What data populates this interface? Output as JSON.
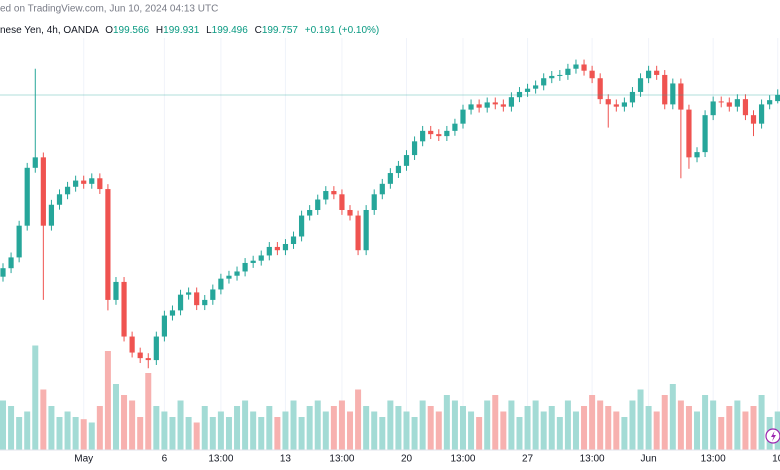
{
  "chart_data": {
    "type": "candlestick",
    "title": "ed on TradingView.com, Jun 10, 2024 04:13 UTC",
    "symbol": "nese Yen, 4h, OANDA",
    "legend_labels": [
      "O",
      "H",
      "L",
      "C"
    ],
    "legend_values": [
      199.566,
      199.931,
      199.496,
      199.757
    ],
    "change": "+0.191 (+0.10%)",
    "categories": [
      null,
      null,
      null,
      null,
      null,
      null,
      null,
      null,
      null,
      null,
      "May",
      null,
      null,
      null,
      null,
      null,
      null,
      null,
      null,
      null,
      "6",
      null,
      null,
      null,
      null,
      null,
      null,
      "13:00",
      null,
      null,
      null,
      null,
      null,
      null,
      null,
      "13",
      null,
      null,
      null,
      null,
      null,
      null,
      "13:00",
      null,
      null,
      null,
      null,
      null,
      null,
      null,
      "20",
      null,
      null,
      null,
      null,
      null,
      null,
      "13:00",
      null,
      null,
      null,
      null,
      null,
      null,
      null,
      "27",
      null,
      null,
      null,
      null,
      null,
      null,
      null,
      "13:00",
      null,
      null,
      null,
      null,
      null,
      null,
      "Jun",
      null,
      null,
      null,
      null,
      null,
      null,
      null,
      "13:00",
      null,
      null,
      null,
      null,
      null,
      null,
      null,
      "10"
    ],
    "open": [
      194.2,
      194.46,
      194.79,
      195.76,
      197.53,
      197.85,
      195.76,
      196.4,
      196.72,
      196.95,
      197.14,
      197.04,
      197.21,
      196.88,
      193.49,
      194.04,
      192.37,
      191.88,
      191.71,
      191.65,
      192.37,
      193.01,
      193.17,
      193.65,
      193.72,
      193.33,
      193.49,
      193.81,
      194.14,
      194.23,
      194.36,
      194.62,
      194.69,
      194.85,
      195.11,
      195.01,
      195.2,
      195.43,
      196.07,
      196.24,
      196.56,
      196.82,
      196.72,
      196.24,
      196.07,
      195.01,
      196.24,
      196.72,
      197.04,
      197.37,
      197.59,
      197.92,
      198.34,
      198.66,
      198.56,
      198.5,
      198.66,
      198.88,
      199.31,
      199.47,
      199.37,
      199.53,
      199.47,
      199.4,
      199.69,
      199.85,
      199.95,
      200.05,
      200.27,
      200.34,
      200.37,
      200.56,
      200.69,
      200.5,
      200.27,
      199.63,
      199.47,
      199.4,
      199.53,
      199.85,
      200.27,
      200.5,
      200.37,
      199.47,
      200.11,
      199.31,
      197.85,
      198.01,
      199.14,
      199.56,
      199.53,
      199.4,
      199.63,
      199.14,
      198.88,
      199.47,
      199.57
    ],
    "high": [
      194.61,
      194.94,
      195.91,
      197.68,
      200.56,
      198.0,
      196.55,
      196.87,
      197.1,
      197.29,
      197.29,
      197.36,
      197.36,
      197.03,
      194.19,
      194.19,
      192.52,
      192.03,
      191.86,
      192.52,
      193.16,
      193.32,
      193.8,
      193.87,
      193.87,
      193.64,
      193.96,
      194.29,
      194.38,
      194.51,
      194.77,
      194.84,
      195.0,
      195.26,
      195.26,
      195.35,
      195.58,
      196.22,
      196.39,
      196.71,
      196.97,
      196.97,
      196.87,
      196.39,
      196.22,
      196.39,
      196.87,
      197.19,
      197.52,
      197.74,
      198.07,
      198.49,
      198.81,
      198.81,
      198.71,
      198.81,
      199.03,
      199.46,
      199.62,
      199.62,
      199.68,
      199.68,
      199.62,
      199.84,
      200.0,
      200.1,
      200.2,
      200.42,
      200.49,
      200.52,
      200.71,
      200.84,
      200.84,
      200.65,
      200.42,
      199.78,
      199.62,
      199.68,
      200.0,
      200.42,
      200.65,
      200.65,
      200.52,
      200.26,
      200.26,
      199.46,
      198.16,
      199.29,
      199.71,
      199.71,
      199.68,
      199.78,
      199.78,
      199.29,
      199.62,
      199.75,
      199.93
    ],
    "low": [
      194.05,
      194.31,
      194.64,
      195.61,
      197.38,
      193.49,
      195.61,
      196.25,
      196.57,
      196.8,
      196.89,
      196.89,
      196.73,
      193.17,
      193.34,
      192.22,
      191.73,
      191.56,
      191.4,
      191.5,
      192.22,
      192.86,
      193.02,
      193.5,
      193.18,
      193.18,
      193.34,
      193.66,
      193.99,
      194.08,
      194.21,
      194.47,
      194.54,
      194.7,
      194.86,
      194.86,
      195.05,
      195.28,
      195.92,
      196.09,
      196.41,
      196.57,
      196.09,
      195.92,
      194.86,
      194.86,
      196.09,
      196.57,
      196.89,
      197.22,
      197.44,
      197.77,
      198.19,
      198.41,
      198.35,
      198.35,
      198.51,
      198.73,
      199.16,
      199.22,
      199.22,
      199.32,
      199.25,
      199.25,
      199.54,
      199.7,
      199.8,
      199.9,
      200.12,
      200.19,
      200.22,
      200.41,
      200.35,
      200.12,
      199.48,
      198.76,
      199.25,
      199.25,
      199.38,
      199.7,
      200.12,
      200.22,
      199.32,
      199.32,
      197.21,
      197.5,
      197.7,
      197.86,
      198.99,
      199.38,
      199.25,
      199.25,
      198.99,
      198.5,
      198.73,
      199.32,
      199.5
    ],
    "close": [
      194.46,
      194.79,
      195.76,
      197.53,
      197.85,
      195.76,
      196.4,
      196.72,
      196.95,
      197.14,
      197.04,
      197.21,
      196.88,
      193.49,
      194.04,
      192.37,
      191.88,
      191.71,
      191.65,
      192.37,
      193.01,
      193.17,
      193.65,
      193.72,
      193.33,
      193.49,
      193.81,
      194.14,
      194.23,
      194.36,
      194.62,
      194.69,
      194.85,
      195.11,
      195.01,
      195.2,
      195.43,
      196.07,
      196.24,
      196.56,
      196.82,
      196.72,
      196.24,
      196.07,
      195.01,
      196.24,
      196.72,
      197.04,
      197.37,
      197.59,
      197.92,
      198.34,
      198.66,
      198.56,
      198.5,
      198.66,
      198.88,
      199.31,
      199.47,
      199.37,
      199.53,
      199.47,
      199.4,
      199.69,
      199.85,
      199.95,
      200.05,
      200.27,
      200.34,
      200.37,
      200.56,
      200.69,
      200.5,
      200.27,
      199.63,
      199.47,
      199.4,
      199.53,
      199.85,
      200.27,
      200.5,
      200.37,
      199.47,
      200.11,
      199.31,
      197.85,
      198.01,
      199.14,
      199.56,
      199.53,
      199.4,
      199.63,
      199.14,
      198.88,
      199.47,
      199.6,
      199.76
    ],
    "volume": [
      45,
      40,
      30,
      35,
      95,
      55,
      40,
      30,
      35,
      30,
      28,
      25,
      40,
      90,
      60,
      50,
      45,
      30,
      70,
      40,
      35,
      30,
      45,
      30,
      25,
      40,
      30,
      35,
      30,
      40,
      45,
      35,
      30,
      40,
      30,
      35,
      45,
      30,
      40,
      45,
      35,
      40,
      45,
      35,
      55,
      40,
      35,
      30,
      45,
      40,
      35,
      30,
      45,
      40,
      35,
      50,
      45,
      40,
      35,
      30,
      45,
      50,
      35,
      45,
      30,
      40,
      45,
      35,
      40,
      30,
      45,
      35,
      40,
      50,
      45,
      40,
      35,
      30,
      45,
      55,
      40,
      35,
      50,
      60,
      45,
      40,
      35,
      50,
      45,
      30,
      40,
      45,
      35,
      40,
      50,
      30,
      35
    ],
    "ylim": [
      188.9,
      201.5
    ],
    "volume_ylim": [
      0,
      100
    ],
    "up_color": "#26a69a",
    "down_color": "#ef5350",
    "volume_up_color": "#a3dbd5",
    "volume_down_color": "#f7b1af",
    "grid": true
  }
}
